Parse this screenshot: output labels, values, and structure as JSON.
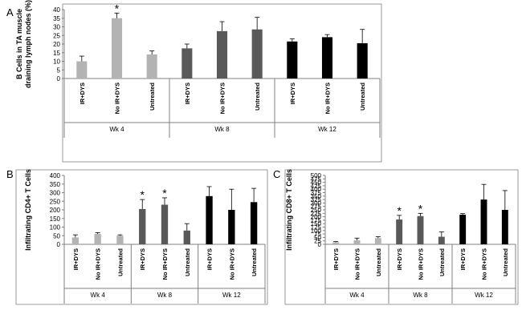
{
  "chart_data": [
    {
      "type": "bar",
      "panel": "A",
      "y_label": [
        "B Cells in TA muscle",
        "draining lymph nodes  (%)"
      ],
      "ylim": [
        0,
        40
      ],
      "yticks": [
        0,
        5,
        10,
        15,
        20,
        25,
        30,
        35,
        40
      ],
      "groups": [
        {
          "name": "Wk 4",
          "categories": [
            "IR+DYS",
            "No IR+DYS",
            "Untreated"
          ],
          "values": [
            10,
            35,
            14
          ],
          "errors": [
            3,
            3,
            2
          ],
          "color": "#b3b3b3"
        },
        {
          "name": "Wk 8",
          "categories": [
            "IR+DYS",
            "No IR+DYS",
            "Untreated"
          ],
          "values": [
            17.5,
            27.5,
            28.5
          ],
          "errors": [
            2.5,
            5.5,
            7
          ],
          "color": "#595959"
        },
        {
          "name": "Wk 12",
          "categories": [
            "IR+DYS",
            "No IR+DYS",
            "Untreated"
          ],
          "values": [
            21.5,
            24,
            20.5
          ],
          "errors": [
            1.5,
            1.5,
            8
          ],
          "color": "#000000"
        }
      ],
      "annotations": [
        {
          "text": "*",
          "group": "Wk 4",
          "category": "No IR+DYS"
        }
      ]
    },
    {
      "type": "bar",
      "panel": "B",
      "y_label": [
        "Infiltrating CD4+ T Cells"
      ],
      "ylim": [
        0,
        400
      ],
      "yticks": [
        0,
        50,
        100,
        150,
        200,
        250,
        300,
        350,
        400
      ],
      "groups": [
        {
          "name": "Wk 4",
          "categories": [
            "IR+DYS",
            "No IR+DYS",
            "Untreated"
          ],
          "values": [
            40,
            60,
            50
          ],
          "errors": [
            15,
            8,
            5
          ],
          "color": "#b3b3b3"
        },
        {
          "name": "Wk 8",
          "categories": [
            "IR+DYS",
            "No IR+DYS",
            "Untreated"
          ],
          "values": [
            205,
            230,
            80
          ],
          "errors": [
            55,
            40,
            40
          ],
          "color": "#595959"
        },
        {
          "name": "Wk 12",
          "categories": [
            "IR+DYS",
            "No IR+DYS",
            "Untreated"
          ],
          "values": [
            280,
            200,
            245
          ],
          "errors": [
            55,
            120,
            80
          ],
          "color": "#000000"
        }
      ],
      "annotations": [
        {
          "text": "*",
          "group": "Wk 8",
          "category": "IR+DYS"
        },
        {
          "text": "*",
          "group": "Wk 8",
          "category": "No IR+DYS"
        }
      ]
    },
    {
      "type": "bar",
      "panel": "C",
      "y_label": [
        "Infiltrating CD8+ T Cells"
      ],
      "ylim": [
        0,
        500
      ],
      "yticks": [
        0,
        25,
        50,
        75,
        100,
        125,
        150,
        175,
        200,
        225,
        250,
        275,
        300,
        325,
        350,
        375,
        400,
        425,
        450,
        475,
        500
      ],
      "groups": [
        {
          "name": "Wk 4",
          "categories": [
            "IR+DYS",
            "No IR+DYS",
            "Untreated"
          ],
          "values": [
            15,
            30,
            45
          ],
          "errors": [
            5,
            15,
            10
          ],
          "color": "#b3b3b3"
        },
        {
          "name": "Wk 8",
          "categories": [
            "IR+DYS",
            "No IR+DYS",
            "Untreated"
          ],
          "values": [
            180,
            205,
            55
          ],
          "errors": [
            30,
            20,
            35
          ],
          "color": "#595959"
        },
        {
          "name": "Wk 12",
          "categories": [
            "IR+DYS",
            "No IR+DYS",
            "Untreated"
          ],
          "values": [
            215,
            325,
            250
          ],
          "errors": [
            8,
            110,
            140
          ],
          "color": "#000000"
        }
      ],
      "annotations": [
        {
          "text": "*",
          "group": "Wk 8",
          "category": "IR+DYS"
        },
        {
          "text": "*",
          "group": "Wk 8",
          "category": "No IR+DYS"
        }
      ]
    }
  ]
}
